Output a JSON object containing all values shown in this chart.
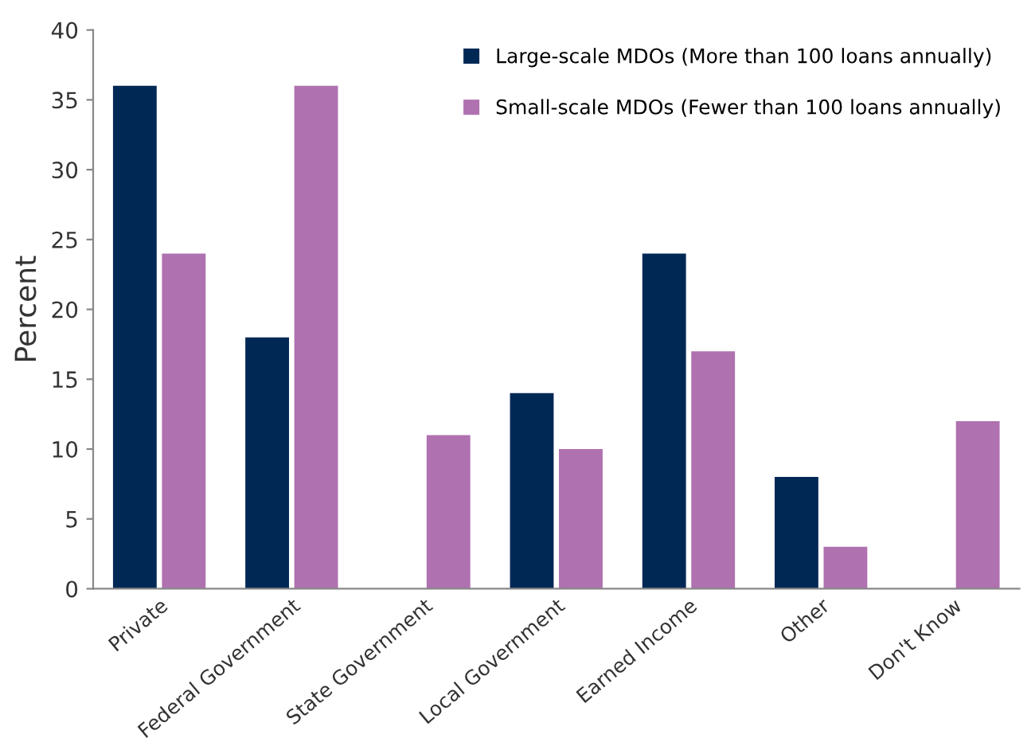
{
  "chart_data": {
    "type": "bar",
    "ylabel": "Percent",
    "categories": [
      "Private",
      "Federal Government",
      "State Government",
      "Local Government",
      "Earned Income",
      "Other",
      "Don't Know"
    ],
    "series": [
      {
        "name": "Large-scale MDOs (More than 100 loans annually)",
        "color": "#002855",
        "values": [
          36,
          18,
          0,
          14,
          24,
          8,
          0
        ]
      },
      {
        "name": "Small-scale MDOs (Fewer than 100 loans annually)",
        "color": "#b071b0",
        "values": [
          24,
          36,
          11,
          10,
          17,
          3,
          12
        ]
      }
    ],
    "ylim": [
      0,
      40
    ],
    "yticks": [
      0,
      5,
      10,
      15,
      20,
      25,
      30,
      35,
      40
    ],
    "grid": false,
    "legend": "top right"
  }
}
